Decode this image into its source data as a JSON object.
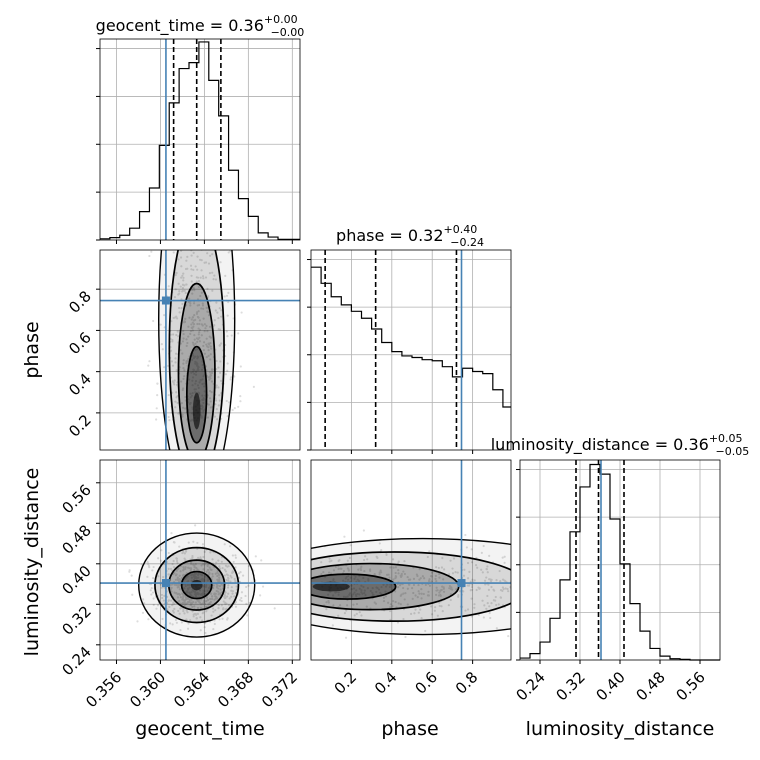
{
  "chart_data": {
    "type": "corner",
    "parameters": [
      "geocent_time",
      "phase",
      "luminosity_distance"
    ],
    "truths": {
      "geocent_time": 0.3605,
      "phase": 0.745,
      "luminosity_distance": 0.362
    },
    "grid": true,
    "panels": [
      {
        "name": "geocent_time",
        "type": "histogram",
        "title": {
          "main": "geocent_time = 0.36",
          "sup": "+0.00",
          "sub": "−0.00"
        },
        "xlim": [
          0.3545,
          0.3727
        ],
        "xticks": [
          0.356,
          0.36,
          0.364,
          0.368,
          0.372
        ],
        "xtick_labels": [
          "0.356",
          "0.360",
          "0.364",
          "0.368",
          "0.372"
        ],
        "quantiles": [
          0.3612,
          0.3633,
          0.3655
        ],
        "bin_edges": [
          0.3545,
          0.3554,
          0.3563,
          0.3572,
          0.3581,
          0.359,
          0.3599,
          0.3608,
          0.3617,
          0.3626,
          0.3635,
          0.3644,
          0.3653,
          0.3662,
          0.3671,
          0.368,
          0.3689,
          0.3698,
          0.3707,
          0.3716,
          0.3727
        ],
        "counts": [
          2,
          4,
          8,
          20,
          48,
          88,
          160,
          232,
          290,
          300,
          335,
          270,
          210,
          118,
          70,
          40,
          12,
          5,
          1,
          1
        ],
        "ymax": 340
      },
      {
        "name": "phase",
        "type": "histogram",
        "title": {
          "main": "phase = 0.32",
          "sup": "+0.40",
          "sub": "−0.24"
        },
        "xlim": [
          0.0,
          0.99
        ],
        "xticks": [
          0.2,
          0.4,
          0.6,
          0.8
        ],
        "xtick_labels": [
          "0.2",
          "0.4",
          "0.6",
          "0.8"
        ],
        "quantiles": [
          0.07,
          0.32,
          0.72
        ],
        "bin_edges": [
          0.0,
          0.05,
          0.1,
          0.15,
          0.2,
          0.25,
          0.3,
          0.35,
          0.4,
          0.45,
          0.5,
          0.55,
          0.6,
          0.65,
          0.7,
          0.75,
          0.8,
          0.85,
          0.9,
          0.95,
          0.99
        ],
        "counts": [
          340,
          310,
          285,
          270,
          258,
          245,
          225,
          200,
          183,
          175,
          172,
          168,
          166,
          155,
          136,
          152,
          146,
          142,
          112,
          80
        ],
        "ymax": 372
      },
      {
        "name": "luminosity_distance",
        "type": "histogram",
        "title": {
          "main": "luminosity_distance = 0.36",
          "sup": "+0.05",
          "sub": "−0.05"
        },
        "xlim": [
          0.2,
          0.6
        ],
        "xticks": [
          0.24,
          0.32,
          0.4,
          0.48,
          0.56
        ],
        "xtick_labels": [
          "0.24",
          "0.32",
          "0.40",
          "0.48",
          "0.56"
        ],
        "quantiles": [
          0.312,
          0.357,
          0.408
        ],
        "bin_edges": [
          0.2,
          0.22,
          0.24,
          0.26,
          0.28,
          0.3,
          0.32,
          0.34,
          0.36,
          0.38,
          0.4,
          0.42,
          0.44,
          0.46,
          0.48,
          0.5,
          0.52,
          0.54,
          0.56,
          0.58,
          0.6
        ],
        "counts": [
          3,
          10,
          28,
          65,
          125,
          200,
          270,
          305,
          290,
          220,
          150,
          88,
          45,
          18,
          6,
          2,
          1,
          0,
          0,
          0
        ],
        "ymax": 312
      },
      {
        "name": "phase vs geocent_time",
        "type": "2d-density",
        "x": "geocent_time",
        "y": "phase",
        "xlim": [
          0.3545,
          0.3727
        ],
        "ylim": [
          0.02,
          0.99
        ],
        "yticks": [
          0.2,
          0.4,
          0.6,
          0.8
        ],
        "ytick_labels": [
          "0.2",
          "0.4",
          "0.6",
          "0.8"
        ],
        "ylabel": "phase",
        "center": [
          0.3633,
          0.16
        ]
      },
      {
        "name": "luminosity_distance vs geocent_time",
        "type": "2d-density",
        "x": "geocent_time",
        "y": "luminosity_distance",
        "xlim": [
          0.3545,
          0.3727
        ],
        "ylim": [
          0.21,
          0.605
        ],
        "yticks": [
          0.24,
          0.32,
          0.4,
          0.48,
          0.56
        ],
        "ytick_labels": [
          "0.24",
          "0.32",
          "0.40",
          "0.48",
          "0.56"
        ],
        "xticks": [
          0.356,
          0.36,
          0.364,
          0.368,
          0.372
        ],
        "xtick_labels": [
          "0.356",
          "0.360",
          "0.364",
          "0.368",
          "0.372"
        ],
        "xlabel": "geocent_time",
        "ylabel": "luminosity_distance",
        "center": [
          0.3633,
          0.358
        ]
      },
      {
        "name": "luminosity_distance vs phase",
        "type": "2d-density",
        "x": "phase",
        "y": "luminosity_distance",
        "xlim": [
          0.0,
          0.99
        ],
        "ylim": [
          0.21,
          0.605
        ],
        "xticks": [
          0.2,
          0.4,
          0.6,
          0.8
        ],
        "xtick_labels": [
          "0.2",
          "0.4",
          "0.6",
          "0.8"
        ],
        "xlabel": "phase",
        "center": [
          0.05,
          0.355
        ]
      }
    ],
    "xlabels": [
      "geocent_time",
      "phase",
      "luminosity_distance"
    ],
    "colors": {
      "truth": "#4682b4",
      "hist": "#000000",
      "density_dark": "#000000",
      "density_light": "#ffffff",
      "grid": "#b0b0b0"
    }
  }
}
